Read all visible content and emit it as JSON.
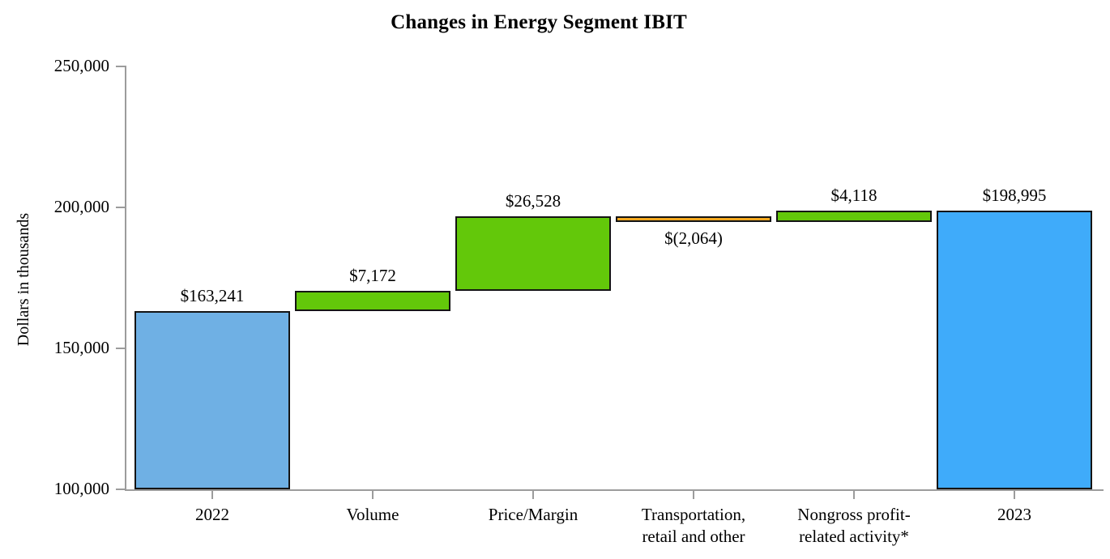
{
  "title": "Changes in Energy Segment IBIT",
  "chart_data": {
    "type": "bar",
    "subtype": "waterfall",
    "title": "Changes in Energy Segment IBIT",
    "ylabel": "Dollars in thousands",
    "xlabel": "",
    "ylim": [
      100000,
      250000
    ],
    "ytick_interval": 50000,
    "grid": false,
    "legend": "none",
    "yticks": [
      {
        "value": 250000,
        "label": "250,000"
      },
      {
        "value": 200000,
        "label": "200,000"
      },
      {
        "value": 150000,
        "label": "150,000"
      },
      {
        "value": 100000,
        "label": "100,000"
      }
    ],
    "colors": {
      "total_2022": "#6FB0E4",
      "total_2023": "#3FABFA",
      "increase": "#63C80A",
      "decrease": "#F5A81F",
      "bar_border": "#141414",
      "axis": "#9C9C9C",
      "text": "#000000"
    },
    "categories": [
      "2022",
      "Volume",
      "Price/Margin",
      "Transportation, retail and other",
      "Nongross profit-related activity*",
      "2023"
    ],
    "bars": [
      {
        "category": "2022",
        "category_lines": [
          "2022"
        ],
        "value": 163241,
        "start": 100000,
        "end": 163241,
        "kind": "total",
        "color_key": "total_2022",
        "data_label": "$163,241",
        "label_position": "above"
      },
      {
        "category": "Volume",
        "category_lines": [
          "Volume"
        ],
        "value": 7172,
        "start": 163241,
        "end": 170413,
        "kind": "increase",
        "color_key": "increase",
        "data_label": "$7,172",
        "label_position": "above"
      },
      {
        "category": "Price/Margin",
        "category_lines": [
          "Price/Margin"
        ],
        "value": 26528,
        "start": 170413,
        "end": 196941,
        "kind": "increase",
        "color_key": "increase",
        "data_label": "$26,528",
        "label_position": "above"
      },
      {
        "category": "Transportation, retail and other",
        "category_lines": [
          "Transportation,",
          "retail and other"
        ],
        "value": -2064,
        "start": 196941,
        "end": 194877,
        "kind": "decrease",
        "color_key": "decrease",
        "data_label": "$(2,064)",
        "label_position": "below"
      },
      {
        "category": "Nongross profit-related activity*",
        "category_lines": [
          "Nongross profit-",
          "related activity*"
        ],
        "value": 4118,
        "start": 194877,
        "end": 198995,
        "kind": "increase",
        "color_key": "increase",
        "data_label": "$4,118",
        "label_position": "above"
      },
      {
        "category": "2023",
        "category_lines": [
          "2023"
        ],
        "value": 198995,
        "start": 100000,
        "end": 198995,
        "kind": "total",
        "color_key": "total_2023",
        "data_label": "$198,995",
        "label_position": "above"
      }
    ]
  }
}
